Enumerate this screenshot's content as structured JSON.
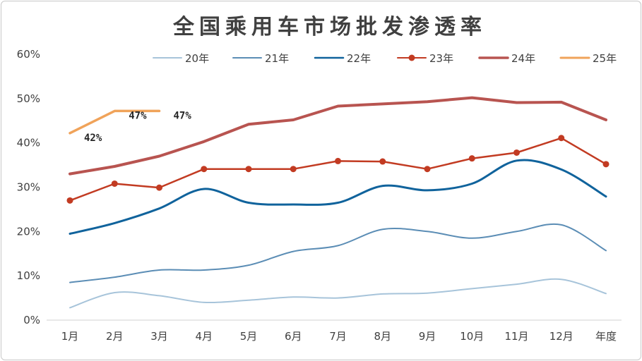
{
  "chart_data": {
    "type": "line",
    "title": "全国乘用车市场批发渗透率",
    "categories": [
      "1月",
      "2月",
      "3月",
      "4月",
      "5月",
      "6月",
      "7月",
      "8月",
      "9月",
      "10月",
      "11月",
      "12月",
      "年度"
    ],
    "ylim": [
      0,
      60
    ],
    "yticks": [
      "0%",
      "10%",
      "20%",
      "30%",
      "40%",
      "50%",
      "60%"
    ],
    "grid": false,
    "legend_position": "top",
    "series": [
      {
        "name": "20年",
        "color": "#a7c4da",
        "width": 2,
        "markers": false,
        "smooth": true,
        "values": [
          2.8,
          6.2,
          5.5,
          4.0,
          4.5,
          5.2,
          5.0,
          5.9,
          6.1,
          7.1,
          8.1,
          9.2,
          6.0
        ]
      },
      {
        "name": "21年",
        "color": "#5b8db5",
        "width": 2,
        "markers": false,
        "smooth": true,
        "values": [
          8.5,
          9.7,
          11.3,
          11.3,
          12.4,
          15.5,
          16.8,
          20.5,
          20.0,
          18.5,
          20.0,
          21.5,
          15.7
        ]
      },
      {
        "name": "22年",
        "color": "#10639c",
        "width": 3,
        "markers": false,
        "smooth": true,
        "values": [
          19.5,
          21.9,
          25.2,
          29.6,
          26.5,
          26.1,
          26.5,
          30.3,
          29.3,
          30.8,
          36.0,
          34.0,
          27.9
        ]
      },
      {
        "name": "23年",
        "color": "#c23b22",
        "width": 2.5,
        "markers": true,
        "smooth": false,
        "values": [
          27.0,
          30.8,
          29.9,
          34.1,
          34.1,
          34.1,
          35.9,
          35.8,
          34.1,
          36.5,
          37.8,
          41.1,
          35.2
        ]
      },
      {
        "name": "24年",
        "color": "#b85450",
        "width": 4,
        "markers": false,
        "smooth": false,
        "values": [
          33.0,
          34.7,
          37.0,
          40.3,
          44.2,
          45.2,
          48.3,
          48.8,
          49.3,
          50.2,
          49.1,
          49.2,
          45.2
        ]
      },
      {
        "name": "25年",
        "color": "#f0a35a",
        "width": 3.5,
        "markers": false,
        "smooth": false,
        "values": [
          42.2,
          47.2,
          47.2,
          null,
          null,
          null,
          null,
          null,
          null,
          null,
          null,
          null,
          null
        ],
        "data_labels": [
          "42%",
          "47%",
          "47%"
        ]
      }
    ]
  }
}
